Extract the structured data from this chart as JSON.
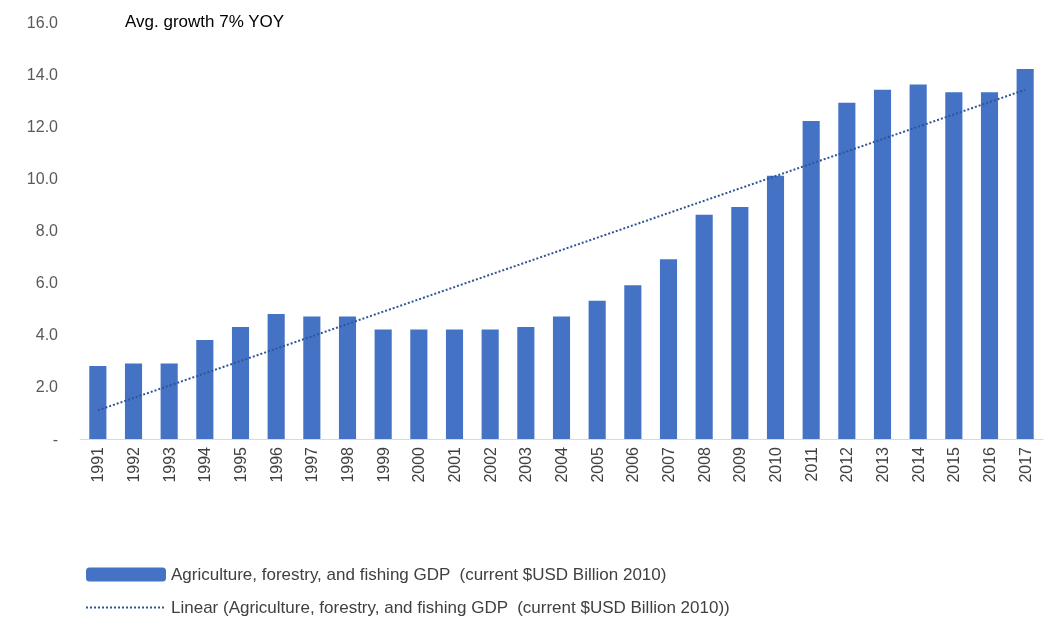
{
  "chart_data": {
    "type": "bar",
    "categories": [
      "1991",
      "1992",
      "1993",
      "1994",
      "1995",
      "1996",
      "1997",
      "1998",
      "1999",
      "2000",
      "2001",
      "2002",
      "2003",
      "2004",
      "2005",
      "2006",
      "2007",
      "2008",
      "2009",
      "2010",
      "2011",
      "2012",
      "2013",
      "2014",
      "2015",
      "2016",
      "2017"
    ],
    "series": [
      {
        "name": "Agriculture, forestry, and fishing GDP  (current $USD Billion 2010)",
        "color": "#4472c4",
        "values": [
          2.8,
          2.9,
          2.9,
          3.8,
          4.3,
          4.8,
          4.7,
          4.7,
          4.2,
          4.2,
          4.2,
          4.2,
          4.3,
          4.7,
          5.3,
          5.9,
          6.9,
          8.6,
          8.9,
          10.1,
          12.2,
          12.9,
          13.4,
          13.6,
          13.3,
          13.3,
          14.2
        ]
      },
      {
        "name": "Linear (Agriculture, forestry, and fishing GDP  (current $USD Billion 2010))",
        "type": "line",
        "color": "#2f5597",
        "values": [
          1.1,
          null,
          null,
          null,
          null,
          null,
          null,
          null,
          null,
          null,
          null,
          null,
          null,
          null,
          null,
          null,
          null,
          null,
          null,
          null,
          null,
          null,
          null,
          null,
          null,
          null,
          13.4
        ],
        "line_style": "dotted",
        "marker": "none"
      }
    ],
    "ylim": [
      0,
      16
    ],
    "yticks": [
      {
        "value": 0,
        "label": "-"
      },
      {
        "value": 2,
        "label": "2.0"
      },
      {
        "value": 4,
        "label": "4.0"
      },
      {
        "value": 6,
        "label": "6.0"
      },
      {
        "value": 8,
        "label": "8.0"
      },
      {
        "value": 10,
        "label": "10.0"
      },
      {
        "value": 12,
        "label": "12.0"
      },
      {
        "value": 14,
        "label": "14.0"
      },
      {
        "value": 16,
        "label": "16.0"
      }
    ],
    "annotations": [
      "Avg. growth 7% YOY"
    ],
    "grid": false,
    "legend": "bottom"
  }
}
